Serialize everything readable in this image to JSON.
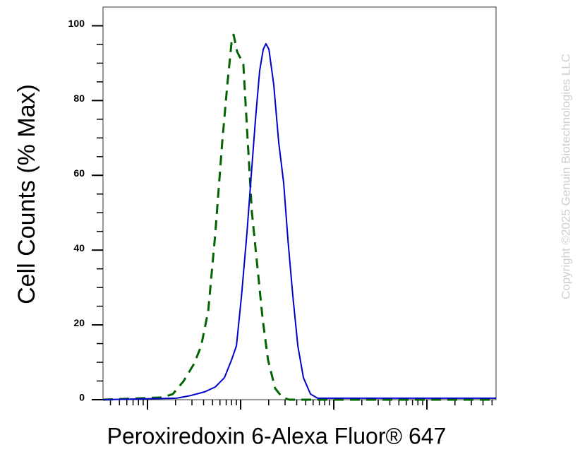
{
  "chart_data": {
    "type": "line",
    "x_label": "Peroxiredoxin 6-Alexa Fluor® 647",
    "y_label": "Cell Counts (% Max)",
    "copyright": "Copyright ©2025 Genuin Biotechnologies LLC",
    "log_x": true,
    "xlim": [
      3.33,
      55200
    ],
    "xticks": [
      10,
      100,
      1000,
      10000
    ],
    "xminor_ticks": [
      4,
      5,
      6,
      7,
      8,
      9,
      20,
      30,
      40,
      50,
      60,
      70,
      80,
      90,
      200,
      300,
      400,
      500,
      600,
      700,
      800,
      900,
      2000,
      3000,
      4000,
      5000,
      6000,
      7000,
      8000,
      9000,
      20000,
      30000,
      40000,
      50000
    ],
    "ylim": [
      0,
      105
    ],
    "yticks": [
      0,
      20,
      40,
      60,
      80,
      100
    ],
    "yminor_ticks": [
      5,
      10,
      15,
      25,
      30,
      35,
      45,
      50,
      55,
      65,
      70,
      75,
      85,
      90,
      95
    ],
    "series": [
      {
        "color": "#006400",
        "dashed": true,
        "x": [
          3.33,
          14.4,
          18.7,
          24.3,
          31.6,
          37.6,
          44.9,
          53.4,
          63.5,
          71.8,
          79.8,
          84.0,
          91.6,
          107,
          117,
          132,
          152,
          172,
          197,
          235,
          280,
          333,
          55200
        ],
        "values": [
          0,
          0.6,
          1.5,
          4.9,
          9.6,
          14.3,
          23.7,
          44.4,
          69,
          84.1,
          95.4,
          97.6,
          93.1,
          89.7,
          72.7,
          50.1,
          35,
          21.8,
          10.6,
          3,
          0.6,
          0,
          0
        ]
      },
      {
        "color": "#0000cc",
        "dashed": false,
        "x": [
          3.33,
          20.5,
          29,
          41.1,
          53.4,
          67,
          79.8,
          90.1,
          102,
          117,
          128,
          144,
          160,
          175,
          187,
          201,
          227,
          256,
          290,
          322,
          364,
          411,
          472,
          563,
          670,
          55200
        ],
        "values": [
          0,
          0.4,
          1.1,
          2.1,
          3.4,
          5.9,
          10.6,
          14.4,
          27.6,
          44.6,
          57.8,
          74.8,
          88,
          93.7,
          95.2,
          93.7,
          84.2,
          69,
          57.8,
          42.7,
          27.6,
          14.4,
          5.9,
          1.5,
          0.4,
          0.4
        ]
      }
    ]
  }
}
